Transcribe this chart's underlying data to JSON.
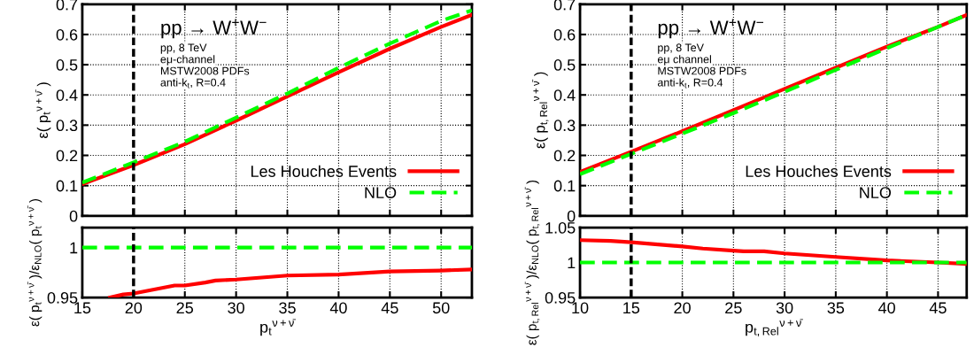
{
  "chart_data": [
    {
      "type": "line",
      "ylabel": "ε( p$_{t}$$^{ν+ν̄}$ )",
      "xlim": [
        15,
        53
      ],
      "xticks": [
        15,
        20,
        25,
        30,
        35,
        40,
        45,
        50
      ],
      "ylim": [
        0,
        0.7
      ],
      "yticks": [
        0,
        0.1,
        0.2,
        0.3,
        0.4,
        0.5,
        0.6,
        0.7
      ],
      "tick_labels": "y",
      "grid": true,
      "legend": "bottom right",
      "annotations": [
        "pp → W$^{+}$W$^{−}$",
        "pp, 8 TeV",
        "eμ-channel",
        "MSTW2008 PDFs",
        "anti-k$_{t}$, R=0.4"
      ],
      "ref_lines": [
        {
          "axis": "x",
          "value": 20,
          "label": null,
          "color": "#000000",
          "line_style": "dashed"
        }
      ],
      "series": [
        {
          "name": "Les Houches Events",
          "color": "#ff0000",
          "line_style": "solid",
          "x": [
            15,
            20,
            25,
            30,
            35,
            40,
            45,
            50,
            53
          ],
          "values": [
            0.105,
            0.168,
            0.237,
            0.315,
            0.395,
            0.475,
            0.553,
            0.625,
            0.665
          ]
        },
        {
          "name": "NLO",
          "color": "#00ff00",
          "line_style": "dashed",
          "x": [
            15,
            20,
            25,
            30,
            35,
            40,
            45,
            50,
            53
          ],
          "values": [
            0.11,
            0.177,
            0.245,
            0.325,
            0.405,
            0.49,
            0.57,
            0.645,
            0.68
          ]
        }
      ]
    },
    {
      "type": "line",
      "ylabel": "ε( p$_{t,Rel}$$^{ν+ν̄}$ )",
      "xlim": [
        10,
        47.8
      ],
      "xticks": [
        10,
        15,
        20,
        25,
        30,
        35,
        40,
        45
      ],
      "ylim": [
        0,
        0.7
      ],
      "yticks": [
        0,
        0.1,
        0.2,
        0.3,
        0.4,
        0.5,
        0.6,
        0.7
      ],
      "tick_labels": "y",
      "grid": true,
      "legend": "bottom right",
      "annotations": [
        "pp → W$^{+}$W$^{−}$",
        "pp, 8 TeV",
        "eμ channel",
        "MSTW2008 PDFs",
        "anti-k$_{t}$, R=0.4"
      ],
      "ref_lines": [
        {
          "axis": "x",
          "value": 15,
          "label": null,
          "color": "#000000",
          "line_style": "dashed"
        }
      ],
      "series": [
        {
          "name": "Les Houches Events",
          "color": "#ff0000",
          "line_style": "solid",
          "x": [
            10,
            15,
            20,
            25,
            30,
            35,
            40,
            45,
            47.8
          ],
          "values": [
            0.145,
            0.212,
            0.28,
            0.35,
            0.42,
            0.49,
            0.56,
            0.625,
            0.665
          ]
        },
        {
          "name": "NLO",
          "color": "#00ff00",
          "line_style": "dashed",
          "x": [
            10,
            15,
            20,
            25,
            30,
            35,
            40,
            45,
            47.8
          ],
          "values": [
            0.138,
            0.205,
            0.272,
            0.34,
            0.41,
            0.483,
            0.555,
            0.625,
            0.665
          ]
        }
      ]
    },
    {
      "type": "line",
      "xlabel": "p$_{t}$$^{ν+ν̄}$",
      "ylabel": "ε( p$_{t}$$^{ν+ν̄}$ )/ε$_{NLO}$( p$_{t}$$^{ν+ν̄}$ )",
      "xlim": [
        15,
        53
      ],
      "xticks": [
        15,
        20,
        25,
        30,
        35,
        40,
        45,
        50
      ],
      "ylim": [
        0.95,
        1.02
      ],
      "yticks": [
        0.95,
        1
      ],
      "grid": "x",
      "ref_lines": [
        {
          "axis": "x",
          "value": 20,
          "label": null,
          "color": "#000000",
          "line_style": "dashed"
        }
      ],
      "series": [
        {
          "color": "#ff0000",
          "line_style": "solid",
          "x": [
            17.7,
            19,
            20,
            22,
            24,
            25,
            27,
            28,
            30,
            35,
            40,
            45,
            50,
            53
          ],
          "values": [
            0.95,
            0.953,
            0.954,
            0.958,
            0.962,
            0.962,
            0.965,
            0.967,
            0.968,
            0.972,
            0.973,
            0.976,
            0.977,
            0.978
          ]
        },
        {
          "color": "#00ff00",
          "line_style": "dashed",
          "x": [
            15,
            53
          ],
          "values": [
            1,
            1
          ]
        }
      ]
    },
    {
      "type": "line",
      "xlabel": "p$_{t,Rel}$$^{ν+ν̄}$",
      "ylabel": "ε( p$_{t,Rel}$$^{ν+ν̄}$ )/ε$_{NLO}$( p$_{t,Rel}$$^{ν+ν̄}$ )",
      "xlim": [
        10,
        47.8
      ],
      "xticks": [
        10,
        15,
        20,
        25,
        30,
        35,
        40,
        45
      ],
      "ylim": [
        0.95,
        1.05
      ],
      "yticks": [
        0.95,
        1,
        1.05
      ],
      "grid": "x",
      "ref_lines": [
        {
          "axis": "x",
          "value": 15,
          "label": null,
          "color": "#000000",
          "line_style": "dashed"
        }
      ],
      "series": [
        {
          "color": "#ff0000",
          "line_style": "solid",
          "x": [
            10,
            13,
            15,
            20,
            22,
            25,
            26,
            28,
            30,
            35,
            40,
            45,
            47.8
          ],
          "values": [
            1.032,
            1.031,
            1.029,
            1.023,
            1.02,
            1.017,
            1.016,
            1.016,
            1.013,
            1.008,
            1.003,
            1.0,
            0.998
          ]
        },
        {
          "color": "#00ff00",
          "line_style": "dashed",
          "x": [
            10,
            47.8
          ],
          "values": [
            1,
            1
          ]
        }
      ]
    }
  ]
}
